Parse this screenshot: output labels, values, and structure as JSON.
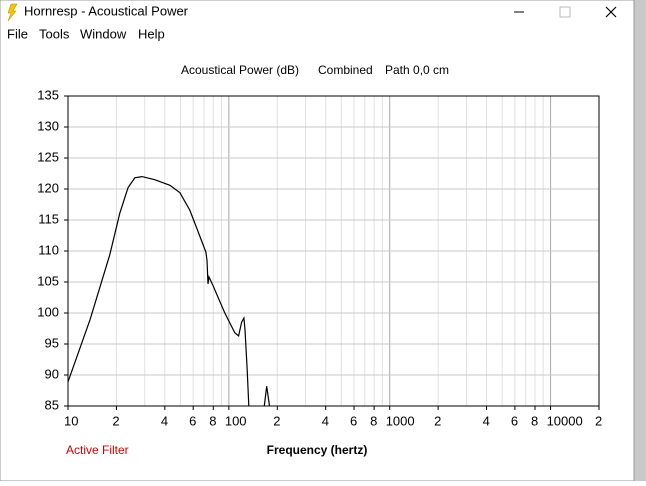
{
  "window": {
    "title": "Hornresp - Acoustical Power",
    "menu": [
      "File",
      "Tools",
      "Window",
      "Help"
    ]
  },
  "chart_data": {
    "type": "line",
    "title": "Acoustical Power (dB)",
    "mode": "Combined",
    "path": "Path 0,0 cm",
    "xlabel": "Frequency (hertz)",
    "annotation": "Active Filter",
    "xscale": "log",
    "color": "#000000",
    "grid": true,
    "x": [
      10,
      13.7,
      18.2,
      21.0,
      23.6,
      26.0,
      28.8,
      34.6,
      43.0,
      49.6,
      57.2,
      66.0,
      72.0,
      73.1,
      74.2,
      75.3,
      79.5,
      94.4,
      108.9,
      115,
      120,
      124,
      126,
      130,
      133,
      null,
      166,
      172,
      179
    ],
    "values": [
      88.9,
      98.9,
      109.4,
      116.1,
      120.2,
      121.8,
      122,
      121.5,
      120.6,
      119.4,
      116.6,
      112.4,
      109.8,
      108.5,
      104.7,
      105.8,
      104.5,
      100,
      96.8,
      96.3,
      98.5,
      99.2,
      97.3,
      90.8,
      85,
      null,
      85,
      88.2,
      85
    ],
    "xlim": [
      10,
      20000
    ],
    "xticks": [
      10,
      {
        "value": 20,
        "label": "2"
      },
      {
        "value": 40,
        "label": "4"
      },
      {
        "value": 60,
        "label": "6"
      },
      {
        "value": 80,
        "label": "8"
      },
      100,
      {
        "value": 200,
        "label": "2"
      },
      {
        "value": 400,
        "label": "4"
      },
      {
        "value": 600,
        "label": "6"
      },
      {
        "value": 800,
        "label": "8"
      },
      1000,
      {
        "value": 2000,
        "label": "2"
      },
      {
        "value": 4000,
        "label": "4"
      },
      {
        "value": 6000,
        "label": "6"
      },
      {
        "value": 8000,
        "label": "8"
      },
      10000,
      {
        "value": 20000,
        "label": "2"
      }
    ],
    "xgrid": [
      30,
      50,
      70,
      90,
      300,
      500,
      700,
      900,
      3000,
      5000,
      7000,
      9000
    ],
    "ylim": [
      85,
      135
    ],
    "yticks": [
      85,
      90,
      95,
      100,
      105,
      110,
      115,
      120,
      125,
      130,
      135
    ]
  }
}
